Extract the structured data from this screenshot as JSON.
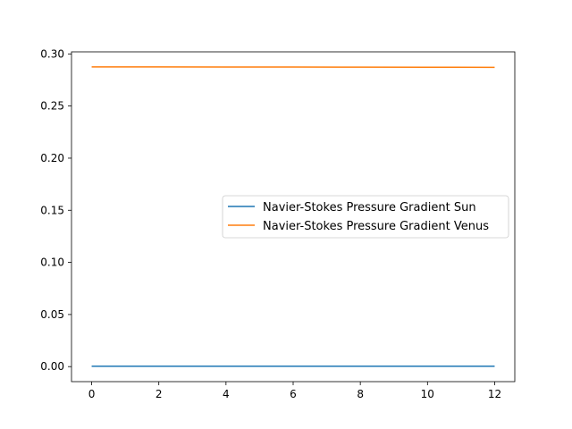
{
  "chart_data": {
    "type": "line",
    "title": "",
    "xlabel": "",
    "ylabel": "",
    "xlim": [
      -0.6,
      12.6
    ],
    "ylim": [
      -0.0144,
      0.302
    ],
    "xticks": [
      0,
      2,
      4,
      6,
      8,
      10,
      12
    ],
    "xtick_labels": [
      "0",
      "2",
      "4",
      "6",
      "8",
      "10",
      "12"
    ],
    "yticks": [
      0.0,
      0.05,
      0.1,
      0.15,
      0.2,
      0.25,
      0.3
    ],
    "ytick_labels": [
      "0.00",
      "0.05",
      "0.10",
      "0.15",
      "0.20",
      "0.25",
      "0.30"
    ],
    "grid": false,
    "legend_placement": "center-right",
    "series": [
      {
        "name": "Navier-Stokes Pressure Gradient Sun",
        "color": "#1f77b4",
        "x": [
          0,
          2,
          4,
          6,
          8,
          10,
          12
        ],
        "y": [
          0.0004,
          0.0004,
          0.0004,
          0.0004,
          0.0004,
          0.0004,
          0.0004
        ]
      },
      {
        "name": "Navier-Stokes Pressure Gradient Venus",
        "color": "#ff7f0e",
        "x": [
          0,
          2,
          4,
          6,
          8,
          10,
          12
        ],
        "y": [
          0.2875,
          0.2875,
          0.2874,
          0.2874,
          0.2873,
          0.2872,
          0.2871
        ]
      }
    ]
  }
}
